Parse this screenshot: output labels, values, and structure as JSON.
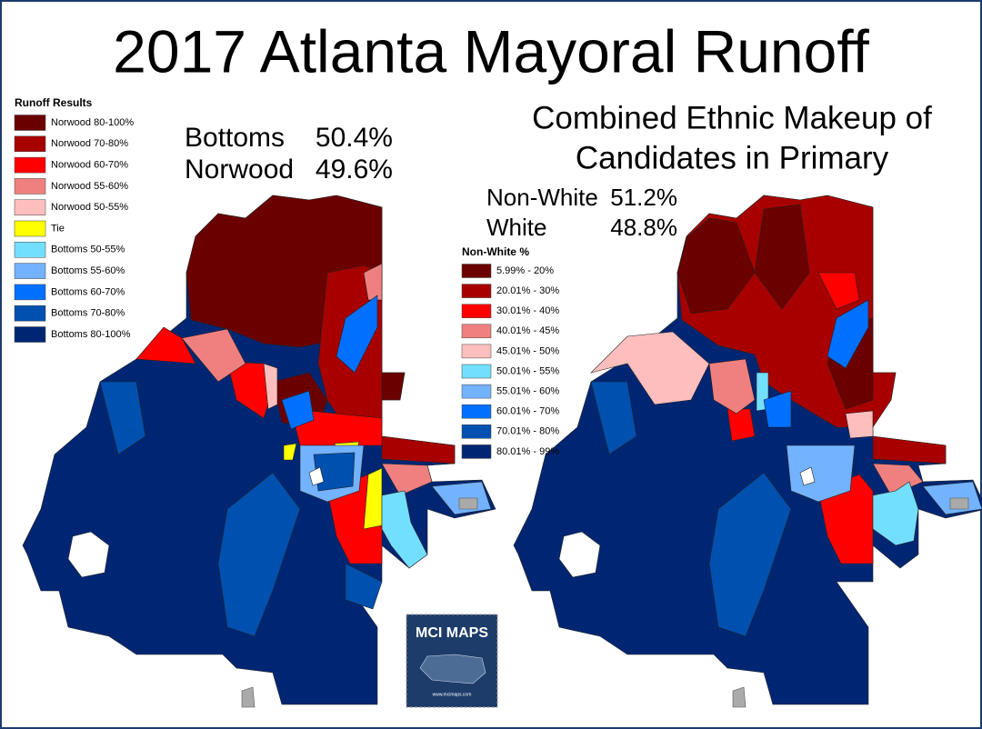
{
  "title": "2017 Atlanta Mayoral Runoff",
  "runoff": {
    "legend": {
      "title": "Runoff Results",
      "items": [
        {
          "label": "Norwood 80-100%",
          "color": "#6b0000"
        },
        {
          "label": "Norwood 70-80%",
          "color": "#a80000"
        },
        {
          "label": "Norwood 60-70%",
          "color": "#ff0000"
        },
        {
          "label": "Norwood 55-60%",
          "color": "#f08080"
        },
        {
          "label": "Norwood 50-55%",
          "color": "#ffbebe"
        },
        {
          "label": "Tie",
          "color": "#ffff00"
        },
        {
          "label": "Bottoms 50-55%",
          "color": "#73dfff"
        },
        {
          "label": "Bottoms 55-60%",
          "color": "#73b2ff"
        },
        {
          "label": "Bottoms 60-70%",
          "color": "#0070ff"
        },
        {
          "label": "Bottoms 70-80%",
          "color": "#0050b0"
        },
        {
          "label": "Bottoms 80-100%",
          "color": "#002673"
        }
      ]
    },
    "results": [
      {
        "name": "Bottoms",
        "share": "50.4%"
      },
      {
        "name": "Norwood",
        "share": "49.6%"
      }
    ]
  },
  "ethnic": {
    "title_lines": [
      "Combined Ethnic Makeup of",
      "Candidates in Primary"
    ],
    "results": [
      {
        "name": "Non-White",
        "share": "51.2%"
      },
      {
        "name": "White",
        "share": "48.8%"
      }
    ],
    "legend": {
      "title": "Non-White %",
      "items": [
        {
          "label": "5.99% - 20%",
          "color": "#6b0000"
        },
        {
          "label": "20.01% - 30%",
          "color": "#a80000"
        },
        {
          "label": "30.01% - 40%",
          "color": "#ff0000"
        },
        {
          "label": "40.01% - 45%",
          "color": "#f08080"
        },
        {
          "label": "45.01% - 50%",
          "color": "#ffbebe"
        },
        {
          "label": "50.01% - 55%",
          "color": "#73dfff"
        },
        {
          "label": "55.01% - 60%",
          "color": "#73b2ff"
        },
        {
          "label": "60.01% - 70%",
          "color": "#0070ff"
        },
        {
          "label": "70.01% - 80%",
          "color": "#0050b0"
        },
        {
          "label": "80.01% - 99%",
          "color": "#002673"
        }
      ]
    }
  },
  "logo": {
    "name": "MCI MAPS",
    "url": "www.mcimaps.com"
  }
}
